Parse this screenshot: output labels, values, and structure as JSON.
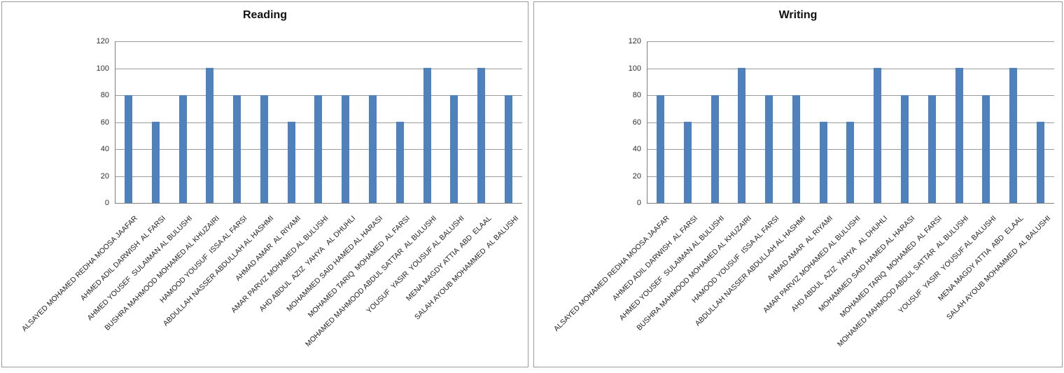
{
  "colors": {
    "bar": "#4f81bd",
    "gridline": "#9b9b9b",
    "axis": "#7f7f7f",
    "panel_border": "#9a9a9a",
    "title_text": "#111111",
    "tick_text": "#2e2e2e"
  },
  "chart_data": [
    {
      "type": "bar",
      "title": "Reading",
      "categories": [
        "ALSAYED MOHAMED REDHA MOOSA JAAFAR",
        "AHMED ADIL DARWISH  AL FARSI",
        "AHMED YOUSEF  SULAIMAN AL BULUSHI",
        "BUSHRA MAHMOOD MOHAMED AL KHUZAIRI",
        "HAMOOD YOUSUF  ISSA AL FARSI",
        "ABDULLAH NASSER ABDULLAH AL HASHMI",
        "AHMAD AMAR  AL RIYAMI",
        "AMAR PARVIZ MOHAMED AL BULUSHI",
        "AHD ABDUL  AZIZ  YAHYA   AL DHUHLI",
        "MOHAMMED SAID HAMED AL HARASI",
        "MOHAMED TARIQ  MOHAMED  AL FARSI",
        "MOHAMED MAHMOOD ABDUL SATTAR  AL BULUSHI",
        "YOUSUF  YASIR  YOUSUF AL BALUSHI",
        "MENA MAGDY ATTIA  ABD  ELAAL",
        "SALAH AYOUB MOHAMMED  AL BALUSHI"
      ],
      "values": [
        80,
        60,
        80,
        100,
        80,
        80,
        60,
        80,
        80,
        80,
        60,
        100,
        80,
        100,
        80
      ],
      "xlabel": "",
      "ylabel": "",
      "ylim": [
        0,
        120
      ],
      "yticks": [
        0,
        20,
        40,
        60,
        80,
        100,
        120
      ],
      "grid": true,
      "legend": false
    },
    {
      "type": "bar",
      "title": "Writing",
      "categories": [
        "ALSAYED MOHAMED REDHA MOOSA JAAFAR",
        "AHMED ADIL DARWISH  AL FARSI",
        "AHMED YOUSEF  SULAIMAN AL BULUSHI",
        "BUSHRA MAHMOOD MOHAMED AL KHUZAIRI",
        "HAMOOD YOUSUF  ISSA AL FARSI",
        "ABDULLAH NASSER ABDULLAH AL HASHMI",
        "AHMAD AMAR  AL RIYAMI",
        "AMAR PARVIZ MOHAMED AL BULUSHI",
        "AHD ABDUL  AZIZ  YAHYA   AL DHUHLI",
        "MOHAMMED SAID HAMED AL HARASI",
        "MOHAMED TARIQ  MOHAMED  AL FARSI",
        "MOHAMED MAHMOOD ABDUL SATTAR  AL BULUSHI",
        "YOUSUF  YASIR  YOUSUF AL BALUSHI",
        "MENA MAGDY ATTIA  ABD  ELAAL",
        "SALAH AYOUB MOHAMMED  AL BALUSHI"
      ],
      "values": [
        80,
        60,
        80,
        100,
        80,
        80,
        60,
        60,
        100,
        80,
        80,
        100,
        80,
        100,
        60
      ],
      "xlabel": "",
      "ylabel": "",
      "ylim": [
        0,
        120
      ],
      "yticks": [
        0,
        20,
        40,
        60,
        80,
        100,
        120
      ],
      "grid": true,
      "legend": false
    }
  ]
}
